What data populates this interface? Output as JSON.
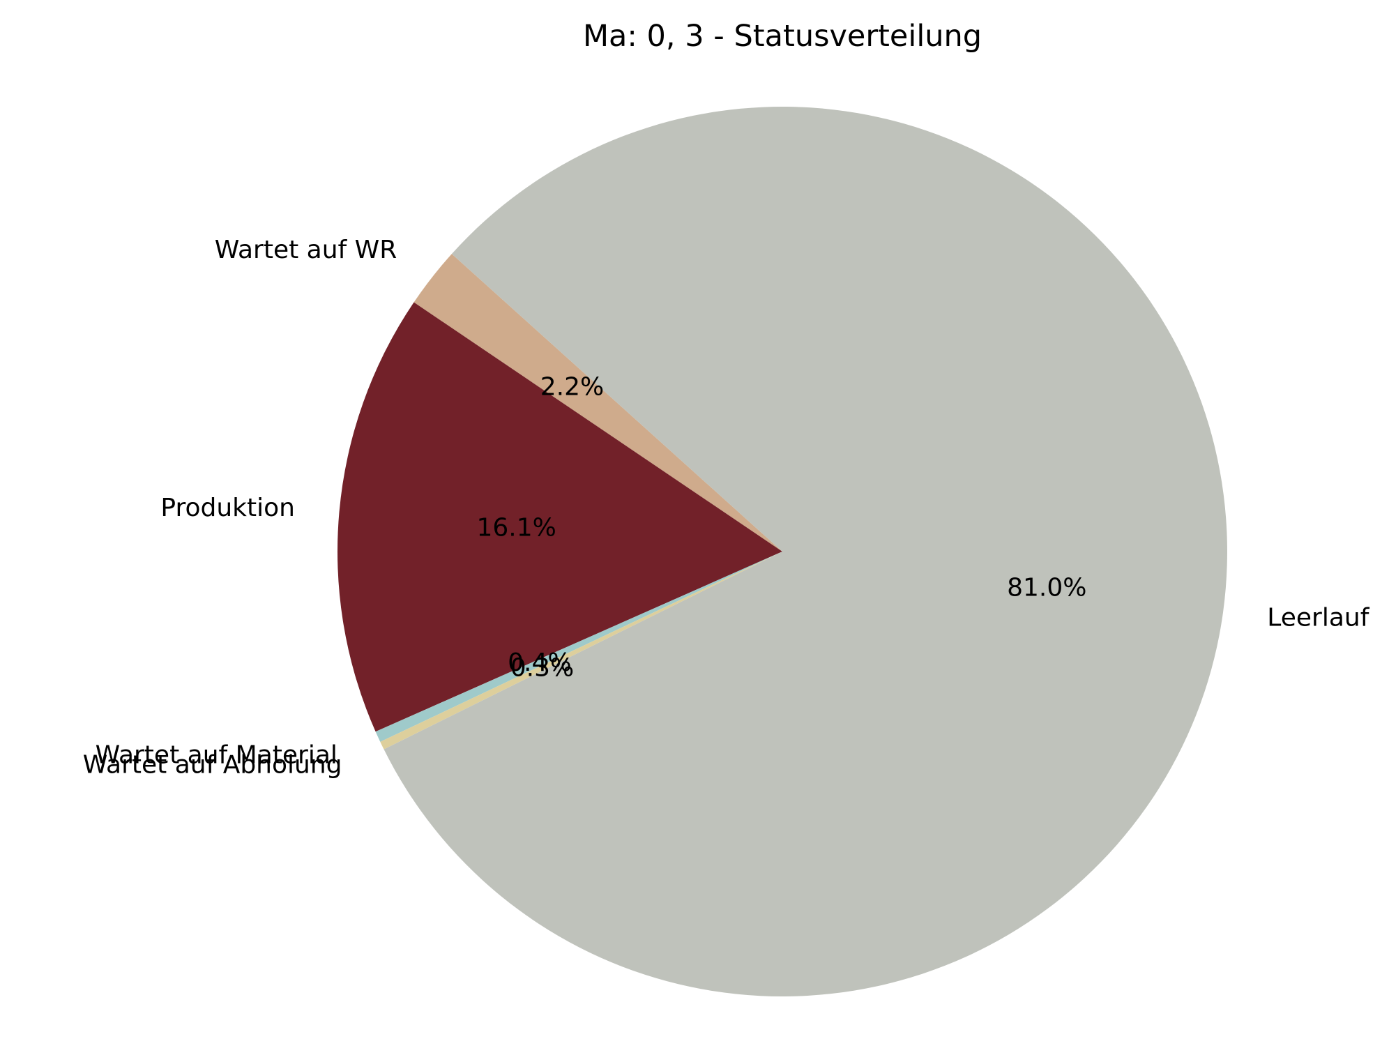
{
  "chart_data": {
    "type": "pie",
    "title": "Ma: 0, 3 - Statusverteilung",
    "start_angle_deg": 138,
    "counterclockwise": true,
    "slices": [
      {
        "label": "Wartet auf WR",
        "value": 2.2,
        "pct_label": "2.2%",
        "color": "#cfab8c"
      },
      {
        "label": "Produktion",
        "value": 16.1,
        "pct_label": "16.1%",
        "color": "#722129"
      },
      {
        "label": "Wartet auf Material",
        "value": 0.4,
        "pct_label": "0.4%",
        "color": "#9fcaca"
      },
      {
        "label": "Wartet auf Abholung",
        "value": 0.3,
        "pct_label": "0.3%",
        "color": "#ddcf9c"
      },
      {
        "label": "Leerlauf",
        "value": 81.0,
        "pct_label": "81.0%",
        "color": "#bfc2bb"
      }
    ]
  }
}
